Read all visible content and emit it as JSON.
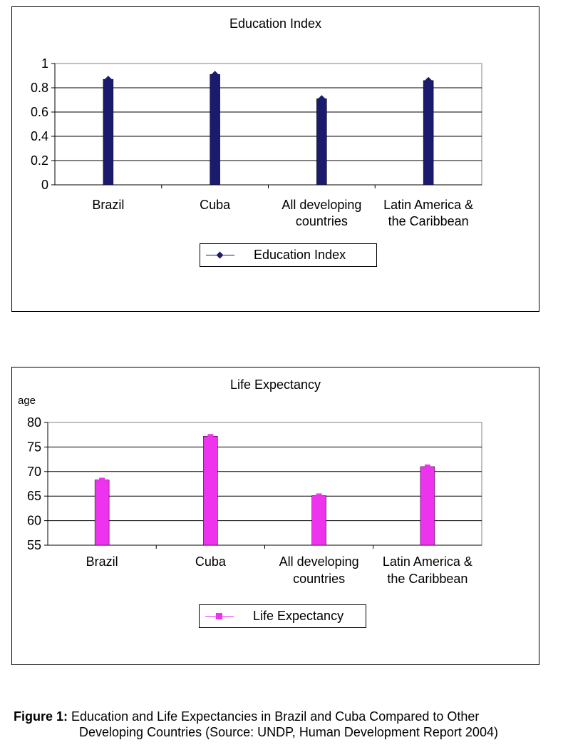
{
  "charts": [
    {
      "chart_data": {
        "type": "bar",
        "title": "Education Index",
        "ylabel": "",
        "categories": [
          "Brazil",
          "Cuba",
          "All developing countries",
          "Latin America & the Caribbean"
        ],
        "category_lines": [
          [
            "Brazil"
          ],
          [
            "Cuba"
          ],
          [
            "All developing",
            "countries"
          ],
          [
            "Latin America &",
            "the Caribbean"
          ]
        ],
        "series": [
          {
            "name": "Education Index",
            "values": [
              0.87,
              0.91,
              0.71,
              0.86
            ]
          }
        ],
        "ylim": [
          0,
          1
        ],
        "yticks": [
          "0",
          "0.2",
          "0.4",
          "0.6",
          "0.8",
          "1"
        ],
        "ytick_values": [
          0,
          0.2,
          0.4,
          0.6,
          0.8,
          1
        ],
        "grid": true,
        "legend": "bottom",
        "colors": {
          "bar": "#1a1a6e",
          "marker": "#1a1a6e"
        },
        "marker": "diamond"
      }
    },
    {
      "chart_data": {
        "type": "bar",
        "title": "Life Expectancy",
        "ylabel": "age",
        "categories": [
          "Brazil",
          "Cuba",
          "All developing countries",
          "Latin America & the Caribbean"
        ],
        "category_lines": [
          [
            "Brazil"
          ],
          [
            "Cuba"
          ],
          [
            "All developing",
            "countries"
          ],
          [
            "Latin America &",
            "the Caribbean"
          ]
        ],
        "series": [
          {
            "name": "Life Expectancy",
            "values": [
              68.3,
              77.2,
              65.1,
              71.0
            ]
          }
        ],
        "ylim": [
          55,
          80
        ],
        "yticks": [
          "55",
          "60",
          "65",
          "70",
          "75",
          "80"
        ],
        "ytick_values": [
          55,
          60,
          65,
          70,
          75,
          80
        ],
        "grid": true,
        "legend": "bottom",
        "colors": {
          "bar": "#ee33ee",
          "marker": "#ee33ee"
        },
        "marker": "square"
      }
    }
  ],
  "caption": {
    "label": "Figure 1:",
    "line1": "Education and Life Expectancies in Brazil and Cuba Compared to Other",
    "line2": "Developing Countries (Source: UNDP, Human Development Report 2004)"
  }
}
